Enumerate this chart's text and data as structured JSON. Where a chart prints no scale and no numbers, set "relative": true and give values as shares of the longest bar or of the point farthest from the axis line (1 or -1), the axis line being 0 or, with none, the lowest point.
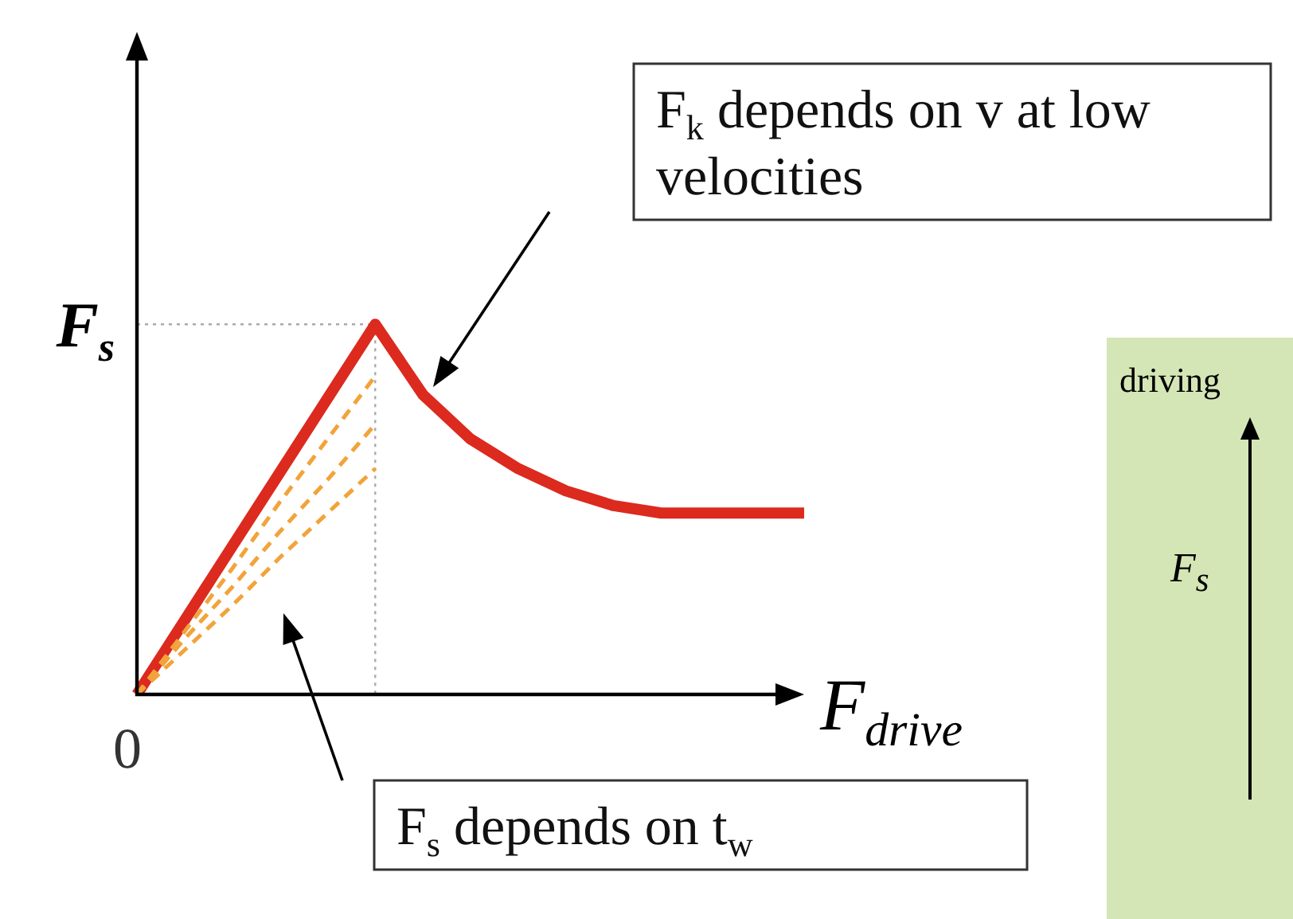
{
  "chart_data": [
    {
      "type": "line",
      "relative": true,
      "xlabel": "F$_{drive}$",
      "legend": false,
      "categories": [
        null,
        null,
        null,
        null,
        null,
        null,
        null,
        null,
        null,
        null,
        null,
        null,
        null,
        null,
        null
      ],
      "series": [
        {
          "color": "#dc2a1f",
          "values": [
            0,
            0.2,
            0.4,
            0.6,
            0.8,
            1,
            0.81,
            0.69,
            0.61,
            0.55,
            0.51,
            0.49,
            0.49,
            0.49,
            0.49
          ]
        },
        {
          "color": "#f2a33a",
          "line_style": "dashed",
          "values": [
            0,
            0.17,
            0.34,
            0.52,
            0.69,
            0.86,
            null,
            null,
            null,
            null,
            null,
            null,
            null,
            null,
            null
          ]
        },
        {
          "color": "#f2a33a",
          "line_style": "dashed",
          "values": [
            0,
            0.15,
            0.29,
            0.44,
            0.58,
            0.73,
            null,
            null,
            null,
            null,
            null,
            null,
            null,
            null,
            null
          ]
        },
        {
          "color": "#f2a33a",
          "line_style": "dashed",
          "values": [
            0,
            0.12,
            0.24,
            0.37,
            0.49,
            0.61,
            null,
            null,
            null,
            null,
            null,
            null,
            null,
            null,
            null
          ]
        }
      ],
      "ref_lines": [
        {
          "axis": "y",
          "value": 1,
          "label": "F$_{s}$",
          "line_style": "dotted",
          "color": "#aaaaaa"
        }
      ],
      "annotations": [
        "F$_{k}$ depends on v at low velocities",
        "F$_{s}$ depends on t$_{w}$",
        "0"
      ]
    },
    {
      "type": "other",
      "annotations": [
        "driving",
        "F$_{s}$"
      ]
    }
  ]
}
